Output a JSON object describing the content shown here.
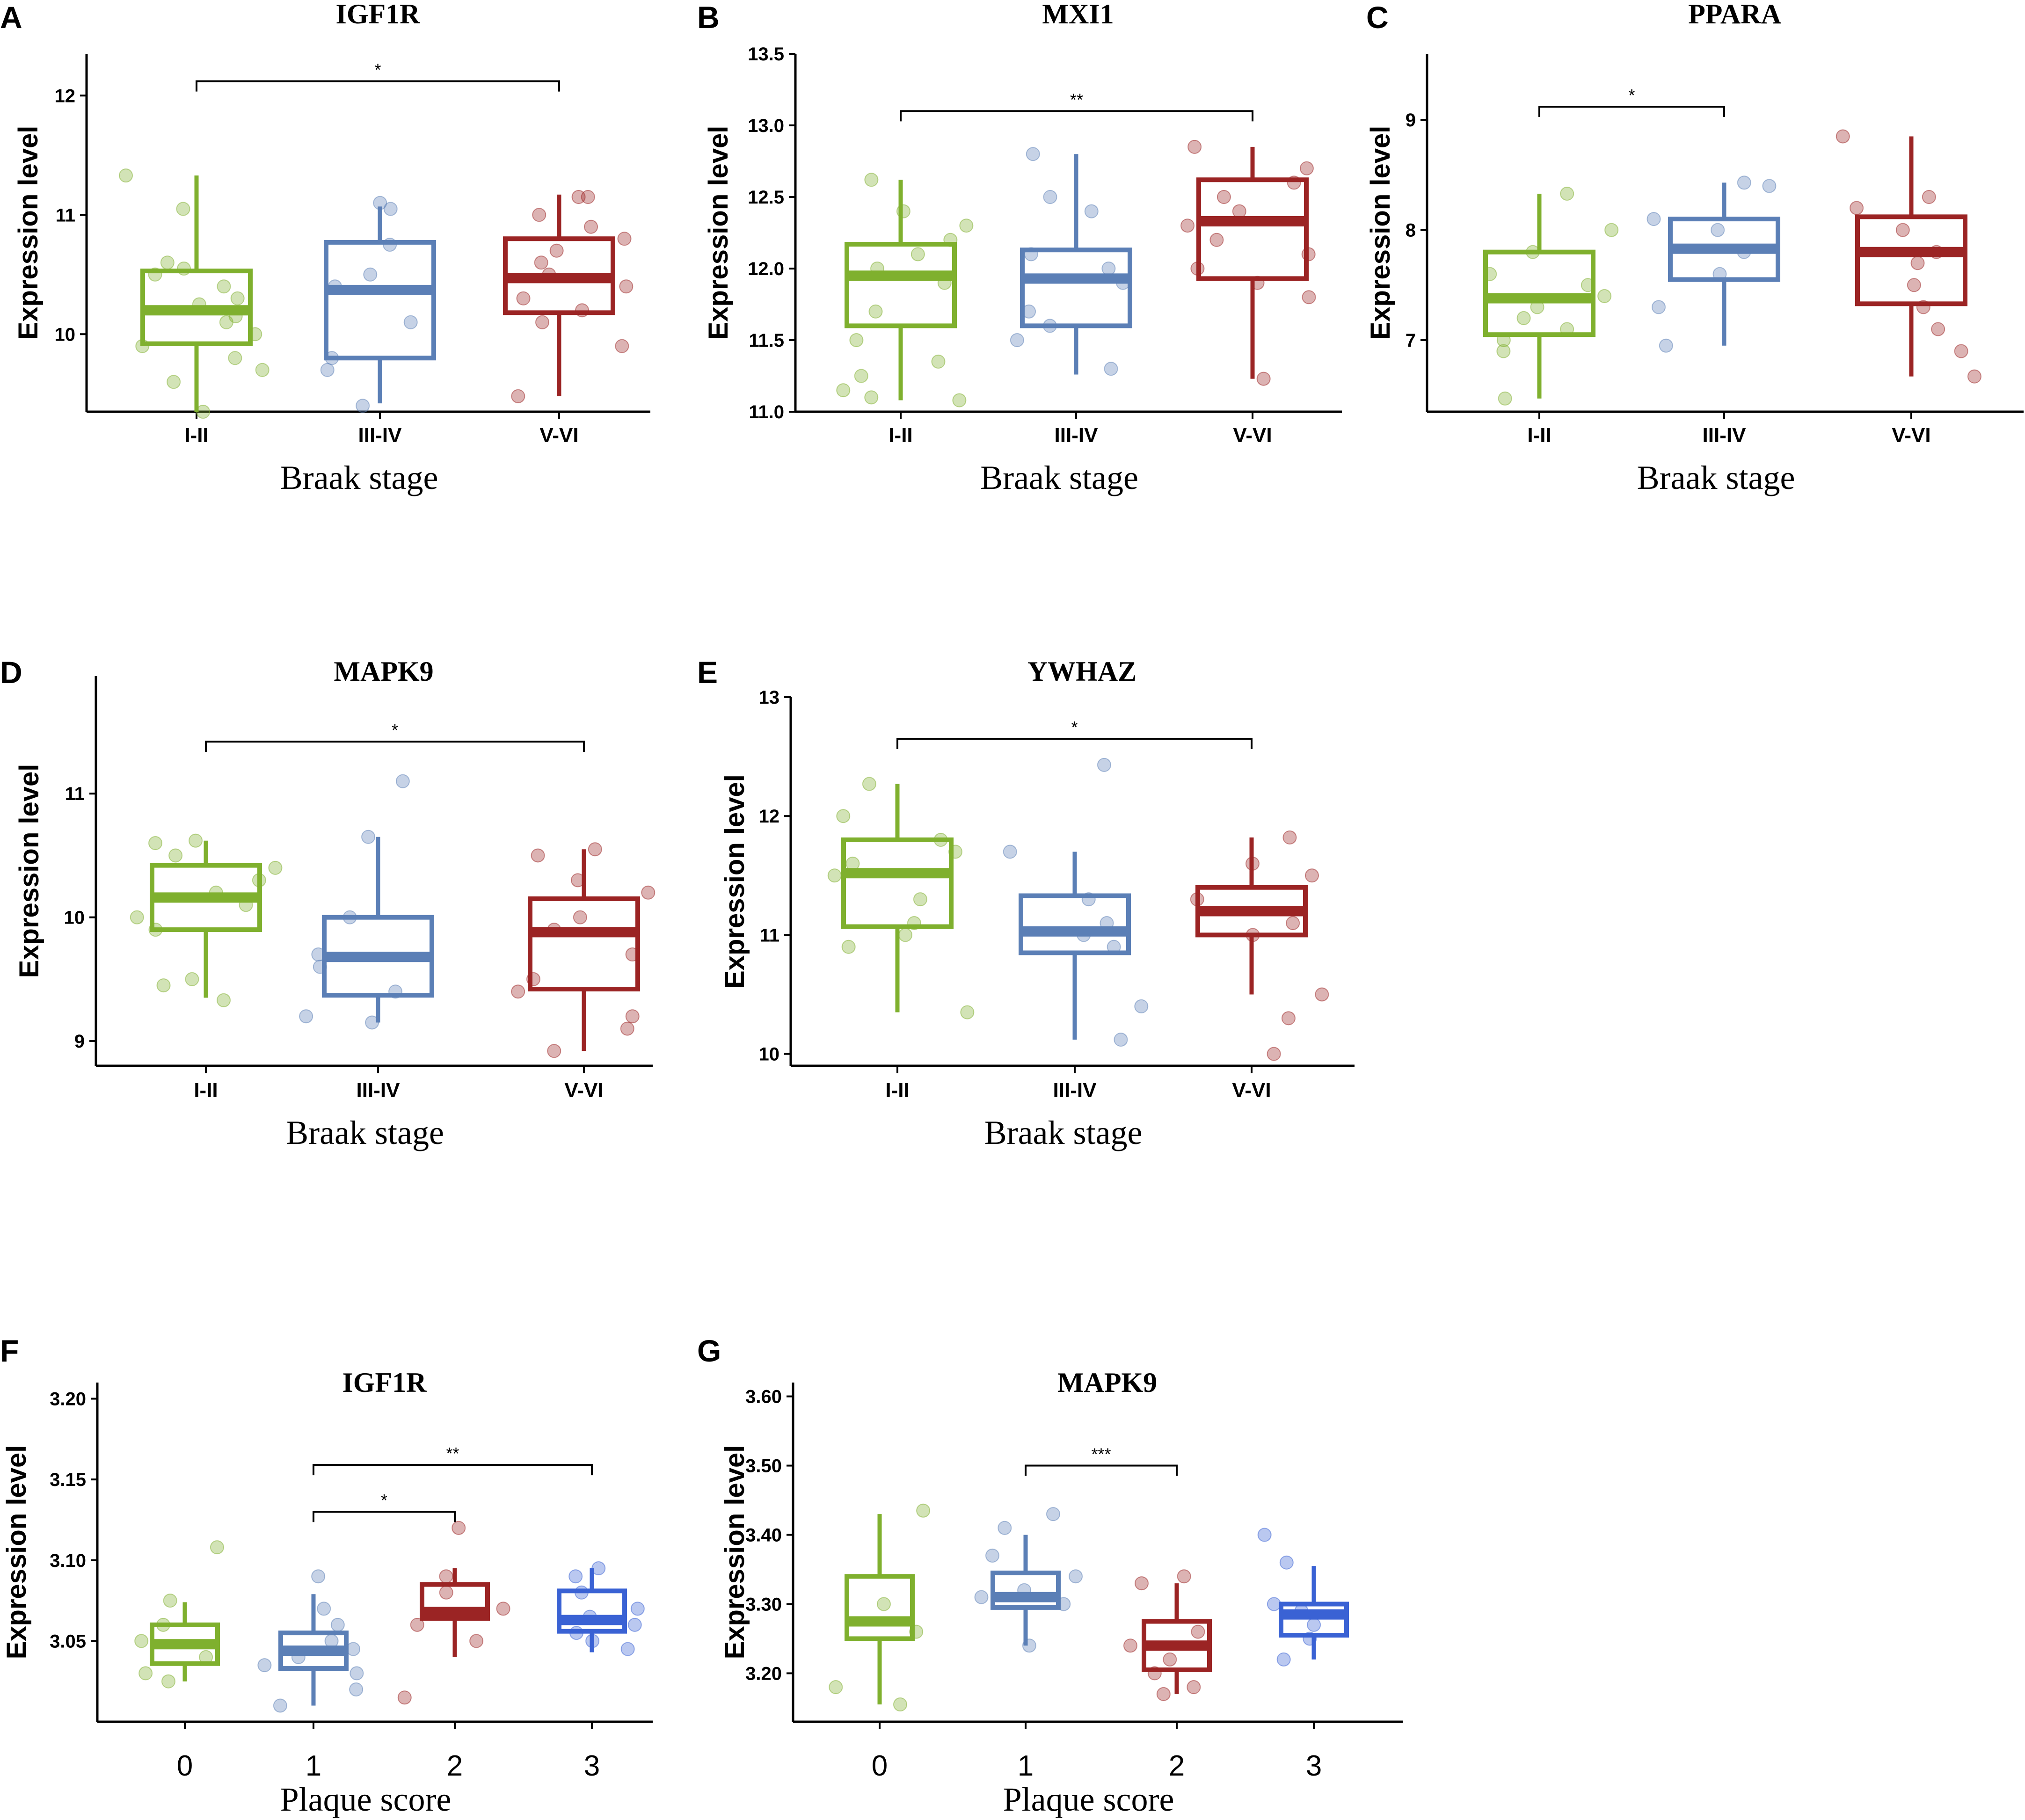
{
  "chart_data": [
    {
      "panel": "A",
      "type": "box",
      "title": "IGF1R",
      "xlabel": "Braak stage",
      "ylabel": "Expression level",
      "ylim": [
        9.35,
        12.35
      ],
      "yticks": [
        10,
        11,
        12
      ],
      "categories": [
        "I-II",
        "III-IV",
        "V-VI"
      ],
      "colors": [
        "#7fb02e",
        "#5b7fb6",
        "#9b2424"
      ],
      "boxes": [
        {
          "min": 9.35,
          "q1": 9.92,
          "median": 10.2,
          "q3": 10.53,
          "max": 11.33
        },
        {
          "min": 9.42,
          "q1": 9.8,
          "median": 10.37,
          "q3": 10.77,
          "max": 11.07
        },
        {
          "min": 9.48,
          "q1": 10.18,
          "median": 10.47,
          "q3": 10.8,
          "max": 11.17
        }
      ],
      "points": [
        [
          9.35,
          9.6,
          9.7,
          9.8,
          9.9,
          10.0,
          10.1,
          10.15,
          10.25,
          10.3,
          10.4,
          10.5,
          10.55,
          10.6,
          11.05,
          11.33
        ],
        [
          9.4,
          9.7,
          9.8,
          10.1,
          10.4,
          10.5,
          10.75,
          11.05,
          11.1
        ],
        [
          9.48,
          9.9,
          10.1,
          10.2,
          10.3,
          10.4,
          10.5,
          10.6,
          10.7,
          10.8,
          10.9,
          11.0,
          11.15,
          11.15
        ]
      ],
      "comparisons": [
        {
          "from": 0,
          "to": 2,
          "y": 12.12,
          "label": "*"
        }
      ]
    },
    {
      "panel": "B",
      "type": "box",
      "title": "MXI1",
      "xlabel": "Braak stage",
      "ylabel": "Expression level",
      "ylim": [
        11.0,
        13.5
      ],
      "yticks": [
        11.0,
        11.5,
        12.0,
        12.5,
        13.0,
        13.5
      ],
      "categories": [
        "I-II",
        "III-IV",
        "V-VI"
      ],
      "colors": [
        "#7fb02e",
        "#5b7fb6",
        "#9b2424"
      ],
      "boxes": [
        {
          "min": 11.08,
          "q1": 11.6,
          "median": 11.95,
          "q3": 12.17,
          "max": 12.62
        },
        {
          "min": 11.26,
          "q1": 11.6,
          "median": 11.93,
          "q3": 12.13,
          "max": 12.8
        },
        {
          "min": 11.23,
          "q1": 11.93,
          "median": 12.33,
          "q3": 12.62,
          "max": 12.85
        }
      ],
      "points": [
        [
          11.08,
          11.1,
          11.15,
          11.25,
          11.35,
          11.5,
          11.7,
          11.9,
          12.0,
          12.1,
          12.2,
          12.3,
          12.4,
          12.62
        ],
        [
          11.3,
          11.5,
          11.6,
          11.7,
          11.9,
          12.0,
          12.1,
          12.4,
          12.5,
          12.8
        ],
        [
          11.23,
          11.8,
          11.9,
          12.0,
          12.1,
          12.2,
          12.3,
          12.4,
          12.5,
          12.6,
          12.7,
          12.85
        ]
      ],
      "comparisons": [
        {
          "from": 0,
          "to": 2,
          "y": 13.1,
          "label": "**"
        }
      ]
    },
    {
      "panel": "C",
      "type": "box",
      "title": "PPARA",
      "xlabel": "Braak stage",
      "ylabel": "Expression level",
      "ylim": [
        6.35,
        9.6
      ],
      "yticks": [
        7,
        8,
        9
      ],
      "categories": [
        "I-II",
        "III-IV",
        "V-VI"
      ],
      "colors": [
        "#7fb02e",
        "#5b7fb6",
        "#9b2424"
      ],
      "boxes": [
        {
          "min": 6.47,
          "q1": 7.05,
          "median": 7.38,
          "q3": 7.8,
          "max": 8.33
        },
        {
          "min": 6.95,
          "q1": 7.55,
          "median": 7.83,
          "q3": 8.1,
          "max": 8.43
        },
        {
          "min": 6.67,
          "q1": 7.33,
          "median": 7.8,
          "q3": 8.12,
          "max": 8.85
        }
      ],
      "points": [
        [
          6.47,
          6.9,
          7.0,
          7.1,
          7.2,
          7.3,
          7.4,
          7.5,
          7.6,
          7.8,
          8.0,
          8.33
        ],
        [
          6.95,
          7.3,
          7.6,
          7.8,
          8.0,
          8.1,
          8.4,
          8.43
        ],
        [
          6.67,
          6.9,
          7.1,
          7.3,
          7.5,
          7.7,
          7.8,
          8.0,
          8.2,
          8.3,
          8.85
        ]
      ],
      "comparisons": [
        {
          "from": 0,
          "to": 1,
          "y": 9.12,
          "label": "*"
        }
      ]
    },
    {
      "panel": "D",
      "type": "box",
      "title": "MAPK9",
      "xlabel": "Braak stage",
      "ylabel": "Expression level",
      "ylim": [
        8.8,
        11.95
      ],
      "yticks": [
        9,
        10,
        11
      ],
      "categories": [
        "I-II",
        "III-IV",
        "V-VI"
      ],
      "colors": [
        "#7fb02e",
        "#5b7fb6",
        "#9b2424"
      ],
      "boxes": [
        {
          "min": 9.35,
          "q1": 9.9,
          "median": 10.16,
          "q3": 10.42,
          "max": 10.62
        },
        {
          "min": 9.15,
          "q1": 9.37,
          "median": 9.68,
          "q3": 10.0,
          "max": 10.65
        },
        {
          "min": 8.92,
          "q1": 9.42,
          "median": 9.88,
          "q3": 10.15,
          "max": 10.55
        }
      ],
      "points": [
        [
          9.33,
          9.45,
          9.5,
          9.9,
          10.0,
          10.1,
          10.2,
          10.3,
          10.4,
          10.5,
          10.6,
          10.62
        ],
        [
          9.15,
          9.2,
          9.4,
          9.6,
          9.7,
          10.0,
          10.65,
          11.1
        ],
        [
          8.92,
          9.1,
          9.2,
          9.4,
          9.5,
          9.7,
          9.9,
          10.0,
          10.2,
          10.3,
          10.5,
          10.55
        ]
      ],
      "comparisons": [
        {
          "from": 0,
          "to": 2,
          "y": 11.42,
          "label": "*"
        }
      ]
    },
    {
      "panel": "E",
      "type": "box",
      "title": "YWHAZ",
      "xlabel": "Braak stage",
      "ylabel": "Expression level",
      "ylim": [
        9.9,
        13.0
      ],
      "yticks": [
        10,
        11,
        12,
        13
      ],
      "categories": [
        "I-II",
        "III-IV",
        "V-VI"
      ],
      "colors": [
        "#7fb02e",
        "#5b7fb6",
        "#9b2424"
      ],
      "boxes": [
        {
          "min": 10.35,
          "q1": 11.07,
          "median": 11.52,
          "q3": 11.8,
          "max": 12.27
        },
        {
          "min": 10.12,
          "q1": 10.85,
          "median": 11.03,
          "q3": 11.33,
          "max": 11.7
        },
        {
          "min": 10.5,
          "q1": 11.0,
          "median": 11.2,
          "q3": 11.4,
          "max": 11.82
        }
      ],
      "points": [
        [
          10.35,
          10.9,
          11.0,
          11.1,
          11.3,
          11.5,
          11.6,
          11.7,
          11.8,
          12.0,
          12.27
        ],
        [
          10.12,
          10.4,
          10.9,
          11.0,
          11.1,
          11.3,
          11.7,
          12.43
        ],
        [
          10.0,
          10.3,
          10.5,
          11.0,
          11.1,
          11.3,
          11.5,
          11.6,
          11.82
        ]
      ],
      "comparisons": [
        {
          "from": 0,
          "to": 2,
          "y": 12.65,
          "label": "*"
        }
      ]
    },
    {
      "panel": "F",
      "type": "box",
      "title": "IGF1R",
      "xlabel": "Plaque score",
      "ylabel": "Expression level",
      "ylim": [
        3.0,
        3.21
      ],
      "yticks": [
        3.05,
        3.1,
        3.15,
        3.2
      ],
      "categories": [
        "0",
        "1",
        "2",
        "3"
      ],
      "colors": [
        "#7fb02e",
        "#5b7fb6",
        "#9b2424",
        "#3a62d4"
      ],
      "boxes": [
        {
          "min": 3.025,
          "q1": 3.036,
          "median": 3.048,
          "q3": 3.06,
          "max": 3.074
        },
        {
          "min": 3.01,
          "q1": 3.033,
          "median": 3.044,
          "q3": 3.055,
          "max": 3.079
        },
        {
          "min": 3.04,
          "q1": 3.064,
          "median": 3.068,
          "q3": 3.085,
          "max": 3.095
        },
        {
          "min": 3.043,
          "q1": 3.056,
          "median": 3.063,
          "q3": 3.081,
          "max": 3.095
        }
      ],
      "points": [
        [
          3.025,
          3.03,
          3.04,
          3.05,
          3.06,
          3.075,
          3.108
        ],
        [
          3.01,
          3.02,
          3.03,
          3.035,
          3.04,
          3.045,
          3.05,
          3.06,
          3.07,
          3.09
        ],
        [
          3.015,
          3.05,
          3.06,
          3.07,
          3.08,
          3.09,
          3.12
        ],
        [
          3.045,
          3.05,
          3.055,
          3.06,
          3.065,
          3.07,
          3.08,
          3.09,
          3.095
        ]
      ],
      "comparisons": [
        {
          "from": 1,
          "to": 2,
          "y": 3.13,
          "label": "*"
        },
        {
          "from": 1,
          "to": 3,
          "y": 3.159,
          "label": "**"
        }
      ]
    },
    {
      "panel": "G",
      "type": "box",
      "title": "MAPK9",
      "xlabel": "Plaque score",
      "ylabel": "Expression level",
      "ylim": [
        3.13,
        3.62
      ],
      "yticks": [
        3.2,
        3.3,
        3.4,
        3.5,
        3.6
      ],
      "categories": [
        "0",
        "1",
        "2",
        "3"
      ],
      "colors": [
        "#7fb02e",
        "#5b7fb6",
        "#9b2424",
        "#3a62d4"
      ],
      "boxes": [
        {
          "min": 3.155,
          "q1": 3.25,
          "median": 3.275,
          "q3": 3.34,
          "max": 3.43
        },
        {
          "min": 3.24,
          "q1": 3.295,
          "median": 3.31,
          "q3": 3.345,
          "max": 3.4
        },
        {
          "min": 3.17,
          "q1": 3.205,
          "median": 3.24,
          "q3": 3.275,
          "max": 3.33
        },
        {
          "min": 3.22,
          "q1": 3.255,
          "median": 3.285,
          "q3": 3.3,
          "max": 3.355
        }
      ],
      "points": [
        [
          3.155,
          3.18,
          3.26,
          3.3,
          3.435
        ],
        [
          3.24,
          3.3,
          3.31,
          3.32,
          3.34,
          3.37,
          3.41,
          3.43
        ],
        [
          3.17,
          3.18,
          3.2,
          3.22,
          3.24,
          3.26,
          3.33,
          3.34
        ],
        [
          3.22,
          3.25,
          3.27,
          3.29,
          3.3,
          3.36,
          3.4
        ]
      ],
      "comparisons": [
        {
          "from": 1,
          "to": 2,
          "y": 3.5,
          "label": "***"
        }
      ]
    }
  ]
}
